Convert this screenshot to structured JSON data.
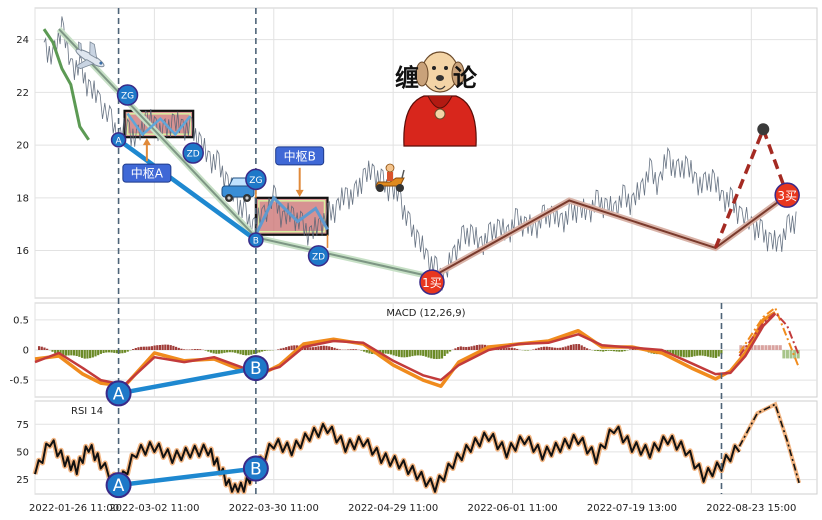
{
  "chart_data": [
    {
      "type": "line",
      "panel": "price",
      "title": "",
      "ylim": [
        14.2,
        25.2
      ],
      "yticks": [
        16,
        18,
        20,
        22,
        24
      ],
      "series": [
        {
          "key": "price",
          "points": [
            [
              0.03,
              23.9
            ],
            [
              0.06,
              23.2
            ],
            [
              0.09,
              24.6
            ],
            [
              0.12,
              23.0
            ],
            [
              0.15,
              22.9
            ],
            [
              0.18,
              22.2
            ],
            [
              0.21,
              21.8
            ],
            [
              0.25,
              21.0
            ],
            [
              0.28,
              20.3
            ],
            [
              0.31,
              20.7
            ],
            [
              0.34,
              20.1
            ],
            [
              0.37,
              21.0
            ],
            [
              0.4,
              20.8
            ],
            [
              0.43,
              20.4
            ],
            [
              0.46,
              20.9
            ],
            [
              0.49,
              20.7
            ],
            [
              0.52,
              20.6
            ],
            [
              0.55,
              20.2
            ],
            [
              0.58,
              19.5
            ],
            [
              0.61,
              19.3
            ],
            [
              0.64,
              18.7
            ],
            [
              0.67,
              18.0
            ],
            [
              0.7,
              17.4
            ],
            [
              0.73,
              16.9
            ],
            [
              0.76,
              17.3
            ],
            [
              0.8,
              18.0
            ],
            [
              0.83,
              17.2
            ],
            [
              0.86,
              17.4
            ],
            [
              0.89,
              17.0
            ],
            [
              0.92,
              16.6
            ],
            [
              0.95,
              16.9
            ],
            [
              0.98,
              17.3
            ],
            [
              1.01,
              17.6
            ],
            [
              1.04,
              18.1
            ],
            [
              1.07,
              18.0
            ],
            [
              1.1,
              18.8
            ],
            [
              1.13,
              19.0
            ],
            [
              1.16,
              18.6
            ],
            [
              1.19,
              18.3
            ],
            [
              1.22,
              18.1
            ],
            [
              1.25,
              17.0
            ],
            [
              1.28,
              16.5
            ],
            [
              1.31,
              15.8
            ],
            [
              1.34,
              15.3
            ],
            [
              1.37,
              14.9
            ],
            [
              1.4,
              15.8
            ],
            [
              1.43,
              16.4
            ],
            [
              1.46,
              16.7
            ],
            [
              1.49,
              16.2
            ],
            [
              1.52,
              16.5
            ],
            [
              1.55,
              16.9
            ],
            [
              1.58,
              16.6
            ],
            [
              1.61,
              17.1
            ],
            [
              1.64,
              17.0
            ],
            [
              1.67,
              16.8
            ],
            [
              1.7,
              17.2
            ],
            [
              1.73,
              17.4
            ],
            [
              1.76,
              17.1
            ],
            [
              1.79,
              17.3
            ],
            [
              1.82,
              17.6
            ],
            [
              1.85,
              17.4
            ],
            [
              1.88,
              17.8
            ],
            [
              1.91,
              17.7
            ],
            [
              1.94,
              17.5
            ],
            [
              1.97,
              18.0
            ],
            [
              2.0,
              17.8
            ],
            [
              2.03,
              18.3
            ],
            [
              2.06,
              19.0
            ],
            [
              2.09,
              18.5
            ],
            [
              2.12,
              19.6
            ],
            [
              2.15,
              18.9
            ],
            [
              2.18,
              19.3
            ],
            [
              2.21,
              18.7
            ],
            [
              2.24,
              18.4
            ],
            [
              2.27,
              18.8
            ],
            [
              2.3,
              18.0
            ],
            [
              2.33,
              17.9
            ],
            [
              2.36,
              17.4
            ],
            [
              2.4,
              17.0
            ],
            [
              2.43,
              16.7
            ],
            [
              2.46,
              16.4
            ],
            [
              2.49,
              16.2
            ],
            [
              2.52,
              16.8
            ],
            [
              2.55,
              17.2
            ]
          ]
        },
        {
          "key": "bi_descending",
          "points": [
            [
              0.03,
              24.4
            ],
            [
              0.06,
              23.9
            ],
            [
              0.09,
              22.9
            ],
            [
              0.12,
              22.3
            ],
            [
              0.15,
              20.7
            ],
            [
              0.18,
              20.2
            ]
          ]
        },
        {
          "key": "segment_down",
          "points": [
            [
              0.08,
              24.4
            ],
            [
              0.74,
              16.5
            ],
            [
              1.33,
              15.0
            ]
          ]
        },
        {
          "key": "segment_up",
          "points": [
            [
              1.33,
              15.0
            ],
            [
              1.79,
              17.9
            ],
            [
              2.28,
              16.1
            ],
            [
              2.52,
              18.1
            ]
          ]
        },
        {
          "key": "projection",
          "points": [
            [
              2.28,
              16.1
            ],
            [
              2.44,
              20.6
            ],
            [
              2.52,
              18.1
            ]
          ]
        },
        {
          "key": "line_AB",
          "points": [
            [
              0.28,
              20.2
            ],
            [
              0.74,
              16.4
            ]
          ]
        }
      ],
      "hub_boxes": [
        {
          "label": "中枢A",
          "x0": 0.3,
          "x1": 0.53,
          "y_low": 20.3,
          "y_high": 21.3
        },
        {
          "label": "中枢B",
          "x0": 0.74,
          "x1": 0.98,
          "y_low": 16.6,
          "y_high": 18.0
        }
      ],
      "markers": [
        {
          "label": "A",
          "x": 0.28,
          "y": 20.2
        },
        {
          "label": "ZG",
          "x": 0.31,
          "y": 21.9
        },
        {
          "label": "ZD",
          "x": 0.53,
          "y": 19.7
        },
        {
          "label": "ZG",
          "x": 0.74,
          "y": 18.7
        },
        {
          "label": "B",
          "x": 0.74,
          "y": 16.4
        },
        {
          "label": "ZD",
          "x": 0.95,
          "y": 15.8
        },
        {
          "label": "1买",
          "x": 1.33,
          "y": 14.8
        },
        {
          "label": "3买",
          "x": 2.52,
          "y": 18.1
        }
      ],
      "annotations": {
        "title_art": "缠论",
        "hub_a": "中枢A",
        "hub_b": "中枢B"
      }
    },
    {
      "type": "line",
      "panel": "macd",
      "title": "MACD (12,26,9)",
      "ylim": [
        -0.78,
        0.78
      ],
      "yticks": [
        -0.5,
        0.0,
        0.5
      ],
      "series": [
        {
          "key": "dif",
          "points": [
            [
              0.0,
              -0.15
            ],
            [
              0.08,
              -0.1
            ],
            [
              0.16,
              -0.4
            ],
            [
              0.22,
              -0.55
            ],
            [
              0.3,
              -0.6
            ],
            [
              0.4,
              -0.05
            ],
            [
              0.5,
              -0.18
            ],
            [
              0.6,
              -0.15
            ],
            [
              0.7,
              -0.35
            ],
            [
              0.75,
              -0.42
            ],
            [
              0.82,
              -0.25
            ],
            [
              0.9,
              0.1
            ],
            [
              1.0,
              0.18
            ],
            [
              1.1,
              0.1
            ],
            [
              1.2,
              -0.25
            ],
            [
              1.3,
              -0.5
            ],
            [
              1.36,
              -0.6
            ],
            [
              1.42,
              -0.2
            ],
            [
              1.52,
              0.05
            ],
            [
              1.62,
              0.1
            ],
            [
              1.72,
              0.15
            ],
            [
              1.82,
              0.32
            ],
            [
              1.9,
              0.05
            ],
            [
              2.0,
              0.05
            ],
            [
              2.1,
              -0.05
            ],
            [
              2.2,
              -0.3
            ],
            [
              2.28,
              -0.48
            ],
            [
              2.33,
              -0.35
            ],
            [
              2.38,
              -0.05
            ],
            [
              2.44,
              0.5
            ],
            [
              2.48,
              0.62
            ]
          ]
        },
        {
          "key": "dea",
          "points": [
            [
              0.0,
              -0.2
            ],
            [
              0.08,
              -0.05
            ],
            [
              0.16,
              -0.3
            ],
            [
              0.22,
              -0.5
            ],
            [
              0.3,
              -0.58
            ],
            [
              0.4,
              -0.12
            ],
            [
              0.5,
              -0.2
            ],
            [
              0.6,
              -0.12
            ],
            [
              0.7,
              -0.3
            ],
            [
              0.75,
              -0.38
            ],
            [
              0.82,
              -0.28
            ],
            [
              0.9,
              0.05
            ],
            [
              1.0,
              0.15
            ],
            [
              1.1,
              0.12
            ],
            [
              1.2,
              -0.18
            ],
            [
              1.3,
              -0.42
            ],
            [
              1.36,
              -0.5
            ],
            [
              1.42,
              -0.25
            ],
            [
              1.52,
              0.0
            ],
            [
              1.62,
              0.1
            ],
            [
              1.72,
              0.12
            ],
            [
              1.82,
              0.26
            ],
            [
              1.9,
              0.08
            ],
            [
              2.0,
              0.04
            ],
            [
              2.1,
              0.0
            ],
            [
              2.2,
              -0.22
            ],
            [
              2.28,
              -0.4
            ],
            [
              2.33,
              -0.38
            ],
            [
              2.38,
              -0.1
            ],
            [
              2.44,
              0.4
            ],
            [
              2.48,
              0.6
            ]
          ]
        },
        {
          "key": "forecast_a",
          "points": [
            [
              2.36,
              -0.05
            ],
            [
              2.44,
              0.55
            ],
            [
              2.48,
              0.7
            ],
            [
              2.52,
              0.2
            ],
            [
              2.56,
              -0.3
            ]
          ]
        },
        {
          "key": "forecast_b",
          "points": [
            [
              2.36,
              -0.1
            ],
            [
              2.44,
              0.45
            ],
            [
              2.48,
              0.62
            ],
            [
              2.52,
              0.4
            ],
            [
              2.56,
              -0.1
            ]
          ]
        },
        {
          "key": "line_AB",
          "points": [
            [
              0.28,
              -0.72
            ],
            [
              0.74,
              -0.3
            ]
          ]
        }
      ],
      "markers": [
        {
          "label": "A",
          "x": 0.28,
          "y": -0.72
        },
        {
          "label": "B",
          "x": 0.74,
          "y": -0.3
        }
      ]
    },
    {
      "type": "line",
      "panel": "rsi",
      "title": "RSI 14",
      "ylim": [
        12,
        96
      ],
      "yticks": [
        25,
        50,
        75
      ],
      "series": [
        {
          "key": "rsi",
          "points": [
            [
              0.0,
              30
            ],
            [
              0.05,
              60
            ],
            [
              0.1,
              42
            ],
            [
              0.14,
              35
            ],
            [
              0.18,
              55
            ],
            [
              0.22,
              40
            ],
            [
              0.28,
              20
            ],
            [
              0.34,
              50
            ],
            [
              0.4,
              55
            ],
            [
              0.46,
              45
            ],
            [
              0.52,
              50
            ],
            [
              0.58,
              52
            ],
            [
              0.62,
              35
            ],
            [
              0.66,
              15
            ],
            [
              0.7,
              18
            ],
            [
              0.74,
              35
            ],
            [
              0.8,
              58
            ],
            [
              0.86,
              52
            ],
            [
              0.92,
              65
            ],
            [
              0.98,
              72
            ],
            [
              1.04,
              55
            ],
            [
              1.1,
              60
            ],
            [
              1.16,
              45
            ],
            [
              1.22,
              40
            ],
            [
              1.28,
              30
            ],
            [
              1.34,
              18
            ],
            [
              1.4,
              40
            ],
            [
              1.46,
              55
            ],
            [
              1.52,
              65
            ],
            [
              1.58,
              50
            ],
            [
              1.64,
              62
            ],
            [
              1.7,
              48
            ],
            [
              1.76,
              55
            ],
            [
              1.82,
              62
            ],
            [
              1.88,
              45
            ],
            [
              1.94,
              72
            ],
            [
              2.0,
              55
            ],
            [
              2.06,
              50
            ],
            [
              2.12,
              62
            ],
            [
              2.18,
              52
            ],
            [
              2.24,
              28
            ],
            [
              2.3,
              38
            ],
            [
              2.36,
              55
            ]
          ]
        },
        {
          "key": "rsi_forecast",
          "points": [
            [
              2.36,
              55
            ],
            [
              2.42,
              85
            ],
            [
              2.48,
              93
            ],
            [
              2.52,
              60
            ],
            [
              2.56,
              22
            ]
          ]
        },
        {
          "key": "line_AB",
          "points": [
            [
              0.28,
              20
            ],
            [
              0.74,
              35
            ]
          ]
        }
      ],
      "markers": [
        {
          "label": "A",
          "x": 0.28,
          "y": 20
        },
        {
          "label": "B",
          "x": 0.74,
          "y": 35
        }
      ]
    }
  ],
  "x_axis": {
    "ticks": [
      {
        "x": 0.0,
        "label": "2022-01-26 11:00"
      },
      {
        "x": 0.4,
        "label": "2022-03-02 11:00"
      },
      {
        "x": 0.8,
        "label": "2022-03-30 11:00"
      },
      {
        "x": 1.2,
        "label": "2022-04-29 11:00"
      },
      {
        "x": 1.6,
        "label": "2022-06-01 11:00"
      },
      {
        "x": 2.0,
        "label": "2022-07-19 13:00"
      },
      {
        "x": 2.4,
        "label": "2022-08-23 15:00"
      }
    ],
    "xlim": [
      0.0,
      2.62
    ],
    "vlines": [
      0.28,
      0.74,
      2.3
    ]
  },
  "colors": {
    "price": "#566475",
    "bi_descending": "#5c9a54",
    "segment_down": "#7d9684",
    "segment_down_glow": "#c7e0c6",
    "segment_up": "#7a3a2c",
    "segment_up_glow": "#d9b3a8",
    "projection": "#a42a22",
    "line_ab": "#1e88d0",
    "marker_blue": "#1e78c8",
    "marker_edge": "#3a2a88",
    "marker_red": "#e8361e",
    "hub_fill": "#c96d6d",
    "hub_edge": "#111111",
    "dif": "#f08b1d",
    "dea": "#c23b3b",
    "hist_pos": "#a03c38",
    "hist_neg": "#6b8a26",
    "rsi": "#111111",
    "rsi_glow": "#f2b582",
    "vline": "#4e6478"
  }
}
